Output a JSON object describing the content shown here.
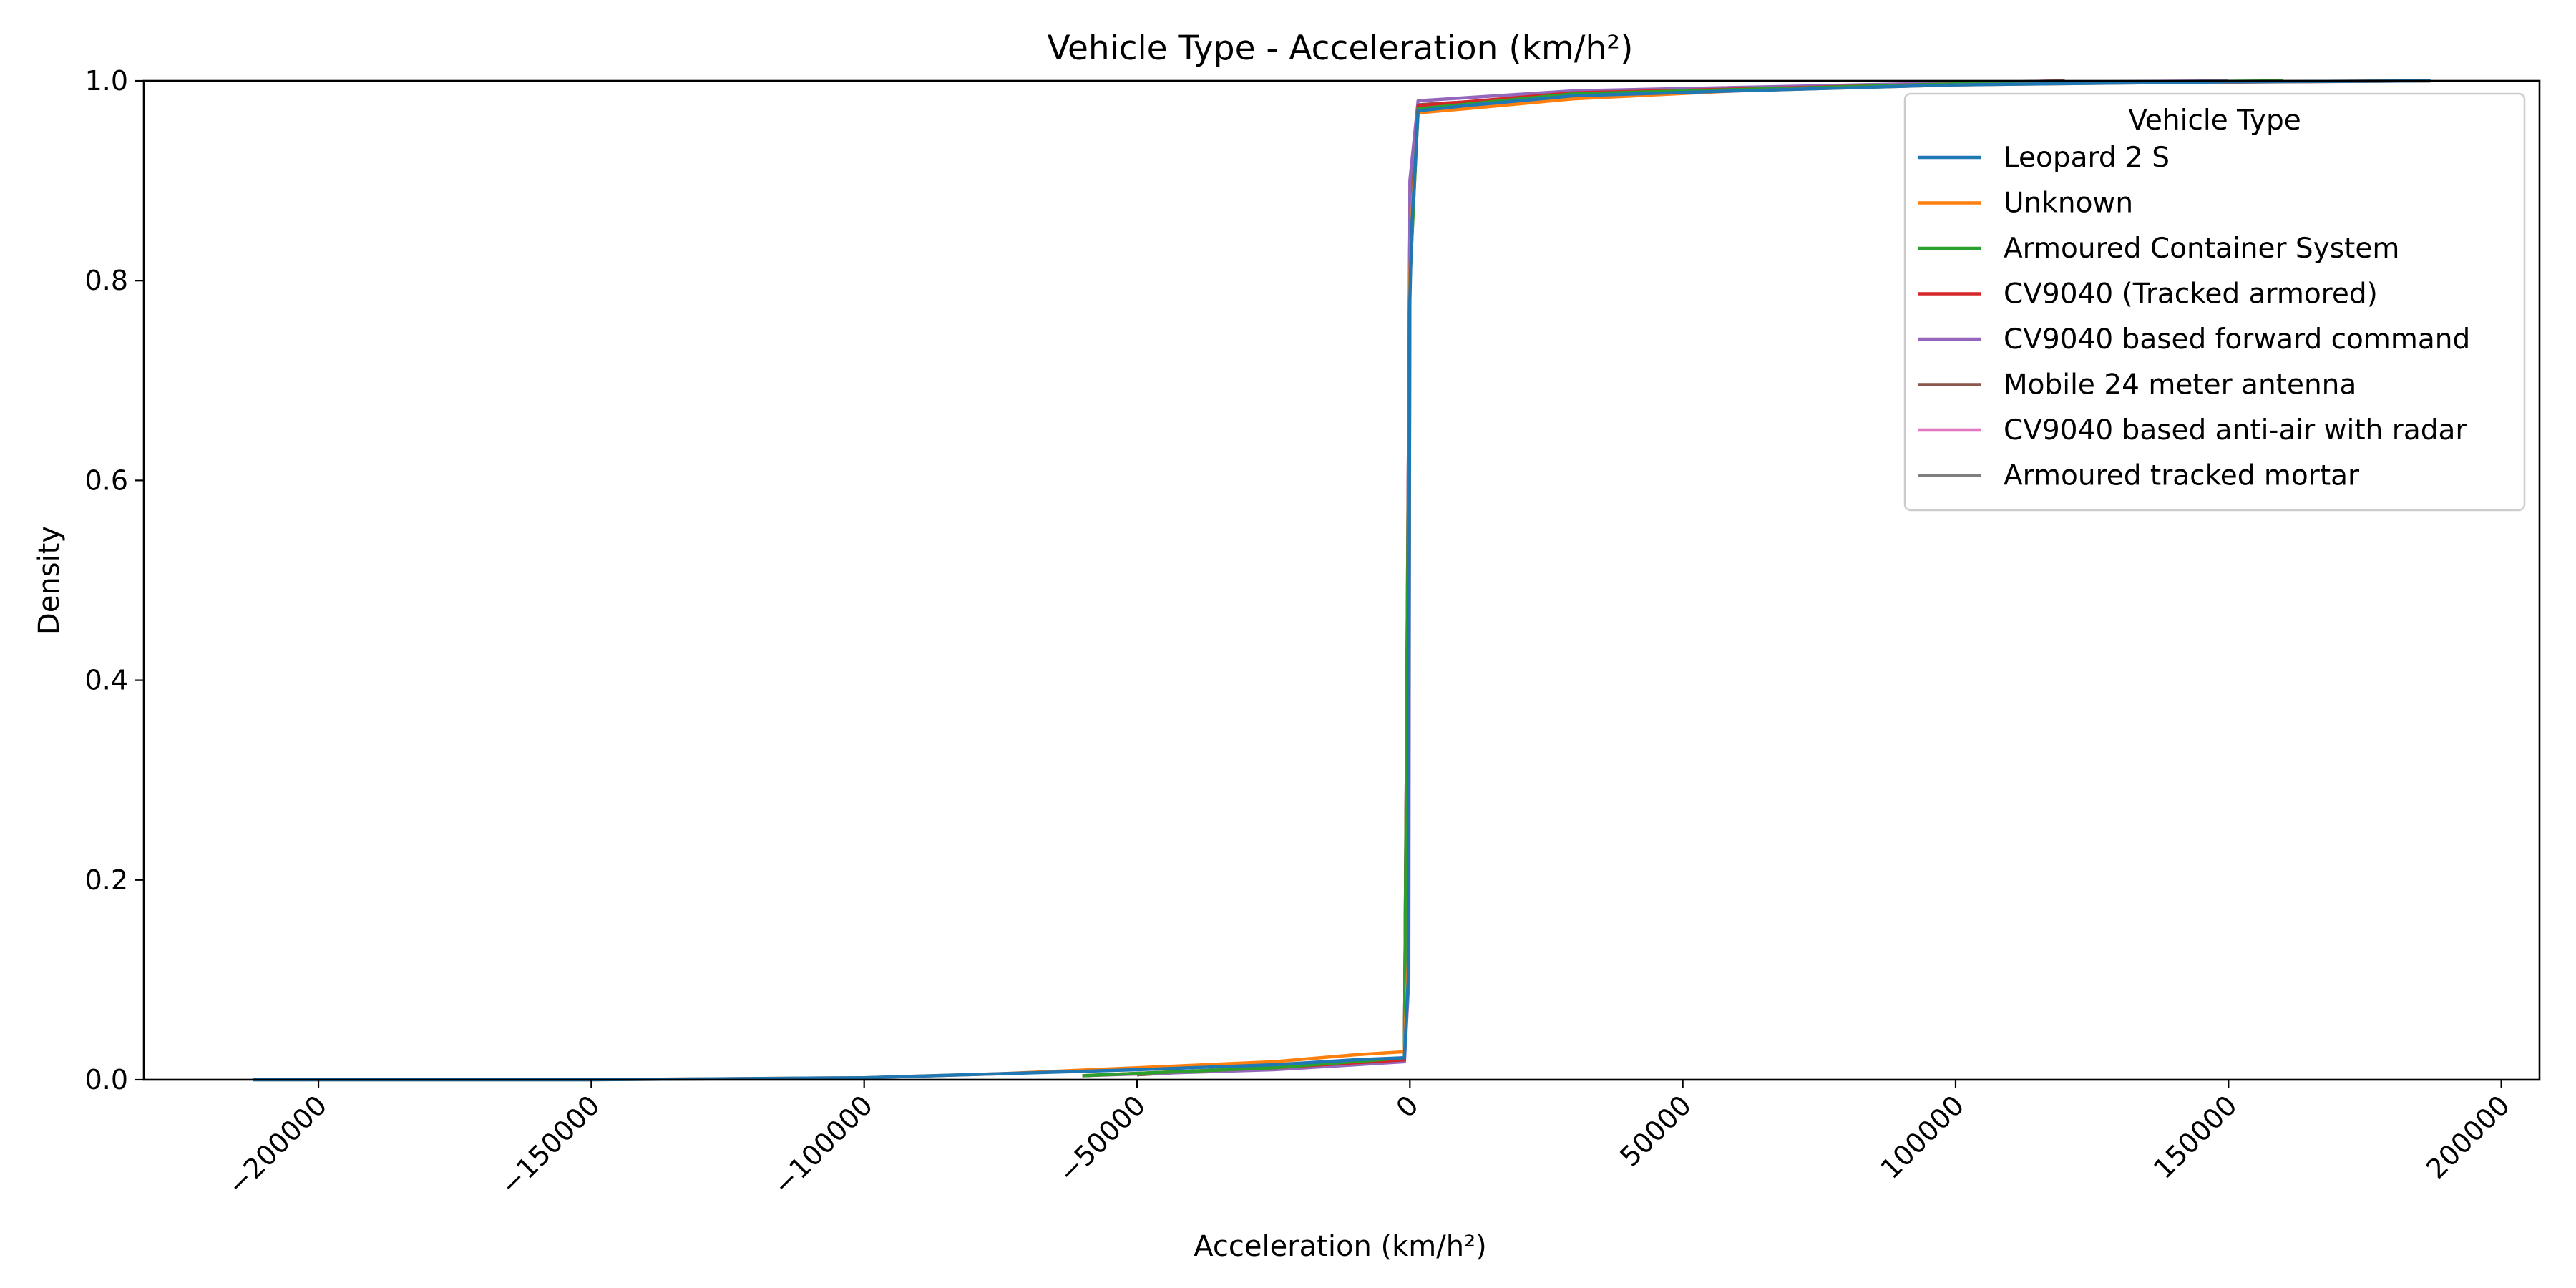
{
  "chart_data": {
    "type": "line",
    "title": "Vehicle Type - Acceleration (km/h²)",
    "xlabel": "Acceleration (km/h²)",
    "ylabel": "Density",
    "xlim": [
      -232000,
      207000
    ],
    "ylim": [
      0,
      1.0
    ],
    "x_ticks": [
      -200000,
      -150000,
      -100000,
      -50000,
      0,
      50000,
      100000,
      150000,
      200000
    ],
    "x_tick_labels": [
      "−200000",
      "−150000",
      "−100000",
      "−50000",
      "0",
      "50000",
      "100000",
      "150000",
      "200000"
    ],
    "y_ticks": [
      0.0,
      0.2,
      0.4,
      0.6,
      0.8,
      1.0
    ],
    "y_tick_labels": [
      "0.0",
      "0.2",
      "0.4",
      "0.6",
      "0.8",
      "1.0"
    ],
    "grid": false,
    "legend": {
      "title": "Vehicle Type",
      "placement": "top-right"
    },
    "series": [
      {
        "name": "Leopard 2 S",
        "color": "#1f77b4",
        "points": [
          [
            -212000,
            0.0
          ],
          [
            -150000,
            0.0
          ],
          [
            -100000,
            0.002
          ],
          [
            -75000,
            0.006
          ],
          [
            -50000,
            0.01
          ],
          [
            -25000,
            0.015
          ],
          [
            -10000,
            0.02
          ],
          [
            -1000,
            0.022
          ],
          [
            -300,
            0.1
          ],
          [
            0,
            0.78
          ],
          [
            300,
            0.85
          ],
          [
            1500,
            0.97
          ],
          [
            10000,
            0.975
          ],
          [
            30000,
            0.985
          ],
          [
            60000,
            0.99
          ],
          [
            100000,
            0.996
          ],
          [
            150000,
            0.999
          ],
          [
            187000,
            1.0
          ]
        ]
      },
      {
        "name": "Unknown",
        "color": "#ff7f0e",
        "points": [
          [
            -212000,
            0.0
          ],
          [
            -150000,
            0.0
          ],
          [
            -100000,
            0.002
          ],
          [
            -75000,
            0.006
          ],
          [
            -50000,
            0.012
          ],
          [
            -25000,
            0.018
          ],
          [
            -10000,
            0.025
          ],
          [
            -1000,
            0.028
          ],
          [
            -300,
            0.12
          ],
          [
            0,
            0.8
          ],
          [
            300,
            0.86
          ],
          [
            1500,
            0.968
          ],
          [
            10000,
            0.972
          ],
          [
            30000,
            0.982
          ],
          [
            60000,
            0.99
          ],
          [
            100000,
            0.996
          ],
          [
            150000,
            0.999
          ],
          [
            187000,
            1.0
          ]
        ]
      },
      {
        "name": "Armoured Container System",
        "color": "#2ca02c",
        "points": [
          [
            -60000,
            0.004
          ],
          [
            -25000,
            0.012
          ],
          [
            -1000,
            0.022
          ],
          [
            0,
            0.8
          ],
          [
            1500,
            0.972
          ],
          [
            30000,
            0.987
          ],
          [
            100000,
            0.997
          ],
          [
            160000,
            1.0
          ]
        ]
      },
      {
        "name": "CV9040 (Tracked armored)",
        "color": "#d62728",
        "points": [
          [
            -60000,
            0.004
          ],
          [
            -25000,
            0.012
          ],
          [
            -1000,
            0.02
          ],
          [
            0,
            0.8
          ],
          [
            1500,
            0.975
          ],
          [
            30000,
            0.988
          ],
          [
            100000,
            0.997
          ],
          [
            187000,
            1.0
          ]
        ]
      },
      {
        "name": "CV9040 based forward command",
        "color": "#9467bd",
        "points": [
          [
            -60000,
            0.004
          ],
          [
            -25000,
            0.01
          ],
          [
            -1000,
            0.018
          ],
          [
            -200,
            0.1
          ],
          [
            0,
            0.9
          ],
          [
            1500,
            0.98
          ],
          [
            30000,
            0.99
          ],
          [
            100000,
            0.998
          ],
          [
            150000,
            1.0
          ]
        ]
      },
      {
        "name": "Mobile 24 meter antenna",
        "color": "#8c564b",
        "points": [
          [
            -50000,
            0.005
          ],
          [
            -1000,
            0.02
          ],
          [
            0,
            0.85
          ],
          [
            1500,
            0.976
          ],
          [
            50000,
            0.992
          ],
          [
            120000,
            1.0
          ]
        ]
      },
      {
        "name": "CV9040 based anti-air with radar",
        "color": "#e377c2",
        "points": [
          [
            -50000,
            0.005
          ],
          [
            -1000,
            0.02
          ],
          [
            0,
            0.85
          ],
          [
            1500,
            0.976
          ],
          [
            50000,
            0.992
          ],
          [
            120000,
            1.0
          ]
        ]
      },
      {
        "name": "Armoured tracked mortar",
        "color": "#7f7f7f",
        "points": [
          [
            -50000,
            0.005
          ],
          [
            -1000,
            0.02
          ],
          [
            0,
            0.85
          ],
          [
            1500,
            0.976
          ],
          [
            50000,
            0.992
          ],
          [
            120000,
            1.0
          ]
        ]
      }
    ]
  }
}
